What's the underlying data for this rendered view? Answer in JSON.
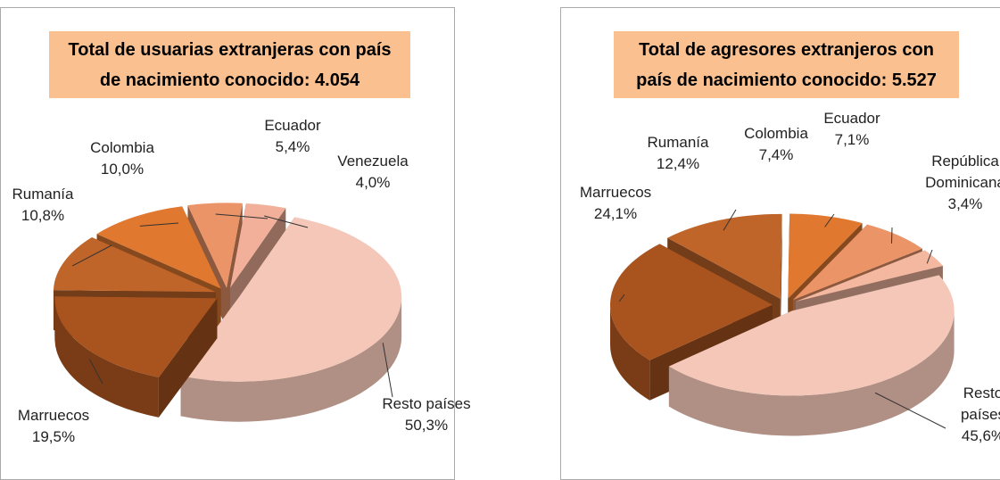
{
  "chart_data": [
    {
      "type": "pie",
      "title": "Total de usuarias extranjeras con país de nacimiento conocido: 4.054",
      "categories": [
        "Resto países",
        "Marruecos",
        "Rumanía",
        "Colombia",
        "Ecuador",
        "Venezuela"
      ],
      "values": [
        50.3,
        19.5,
        10.8,
        10.0,
        5.4,
        4.0
      ],
      "value_labels": [
        "50,3%",
        "19,5%",
        "10,8%",
        "10,0%",
        "5,4%",
        "4,0%"
      ],
      "colors": [
        "#f4c7b8",
        "#a9531f",
        "#c0652a",
        "#e07830",
        "#eb9468",
        "#f2b09a"
      ]
    },
    {
      "type": "pie",
      "title": "Total de agresores extranjeros con país de nacimiento conocido: 5.527",
      "categories": [
        "Resto países",
        "Marruecos",
        "Rumanía",
        "Colombia",
        "Ecuador",
        "República Dominicana"
      ],
      "values": [
        45.6,
        24.1,
        12.4,
        7.4,
        7.1,
        3.4
      ],
      "value_labels": [
        "45,6%",
        "24,1%",
        "12,4%",
        "7,4%",
        "7,1%",
        "3,4%"
      ],
      "colors": [
        "#f4c7b8",
        "#a9531f",
        "#c0652a",
        "#e07830",
        "#eb9468",
        "#f4b8a0"
      ]
    }
  ]
}
